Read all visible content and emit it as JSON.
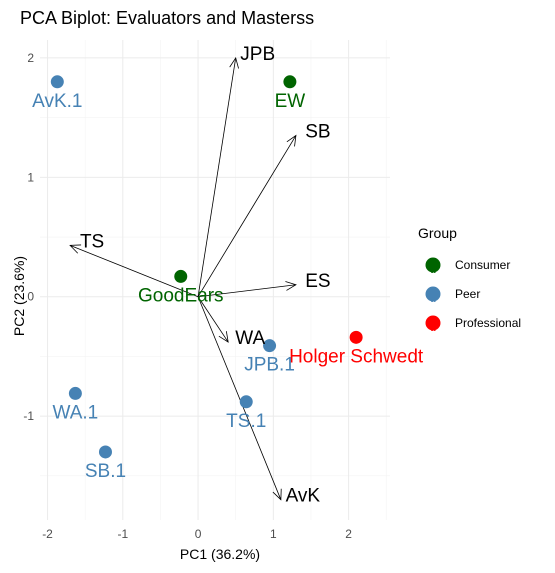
{
  "chart_data": {
    "type": "scatter",
    "title": "PCA Biplot: Evaluators and Masterss",
    "xlabel": "PC1 (36.2%)",
    "ylabel": "PC2 (23.6%)",
    "xlim": [
      -2.1,
      2.55
    ],
    "ylim": [
      -1.87,
      2.15
    ],
    "xticks": [
      -2,
      -1,
      0,
      1,
      2
    ],
    "yticks": [
      -1,
      0,
      1,
      2
    ],
    "grid": true,
    "legend": {
      "title": "Group",
      "placement": "right",
      "entries": [
        {
          "name": "Consumer",
          "color": "#006400"
        },
        {
          "name": "Peer",
          "color": "#4682B4"
        },
        {
          "name": "Professional",
          "color": "#FF0000"
        }
      ]
    },
    "points": [
      {
        "label": "AvK.1",
        "group": "Peer",
        "x": -1.87,
        "y": 1.8
      },
      {
        "label": "EW",
        "group": "Consumer",
        "x": 1.22,
        "y": 1.8
      },
      {
        "label": "GoodEars",
        "group": "Consumer",
        "x": -0.23,
        "y": 0.17
      },
      {
        "label": "Holger Schwedt",
        "group": "Professional",
        "x": 2.1,
        "y": -0.34
      },
      {
        "label": "JPB.1",
        "group": "Peer",
        "x": 0.95,
        "y": -0.41
      },
      {
        "label": "WA.1",
        "group": "Peer",
        "x": -1.63,
        "y": -0.81
      },
      {
        "label": "TS.1",
        "group": "Peer",
        "x": 0.64,
        "y": -0.88
      },
      {
        "label": "SB.1",
        "group": "Peer",
        "x": -1.23,
        "y": -1.3
      }
    ],
    "loadings": [
      {
        "label": "JPB",
        "x": 0.5,
        "y": 2.0
      },
      {
        "label": "SB",
        "x": 1.3,
        "y": 1.35
      },
      {
        "label": "TS",
        "x": -1.7,
        "y": 0.43
      },
      {
        "label": "ES",
        "x": 1.3,
        "y": 0.1
      },
      {
        "label": "WA",
        "x": 0.4,
        "y": -0.38
      },
      {
        "label": "AvK",
        "x": 1.1,
        "y": -1.7
      }
    ]
  }
}
